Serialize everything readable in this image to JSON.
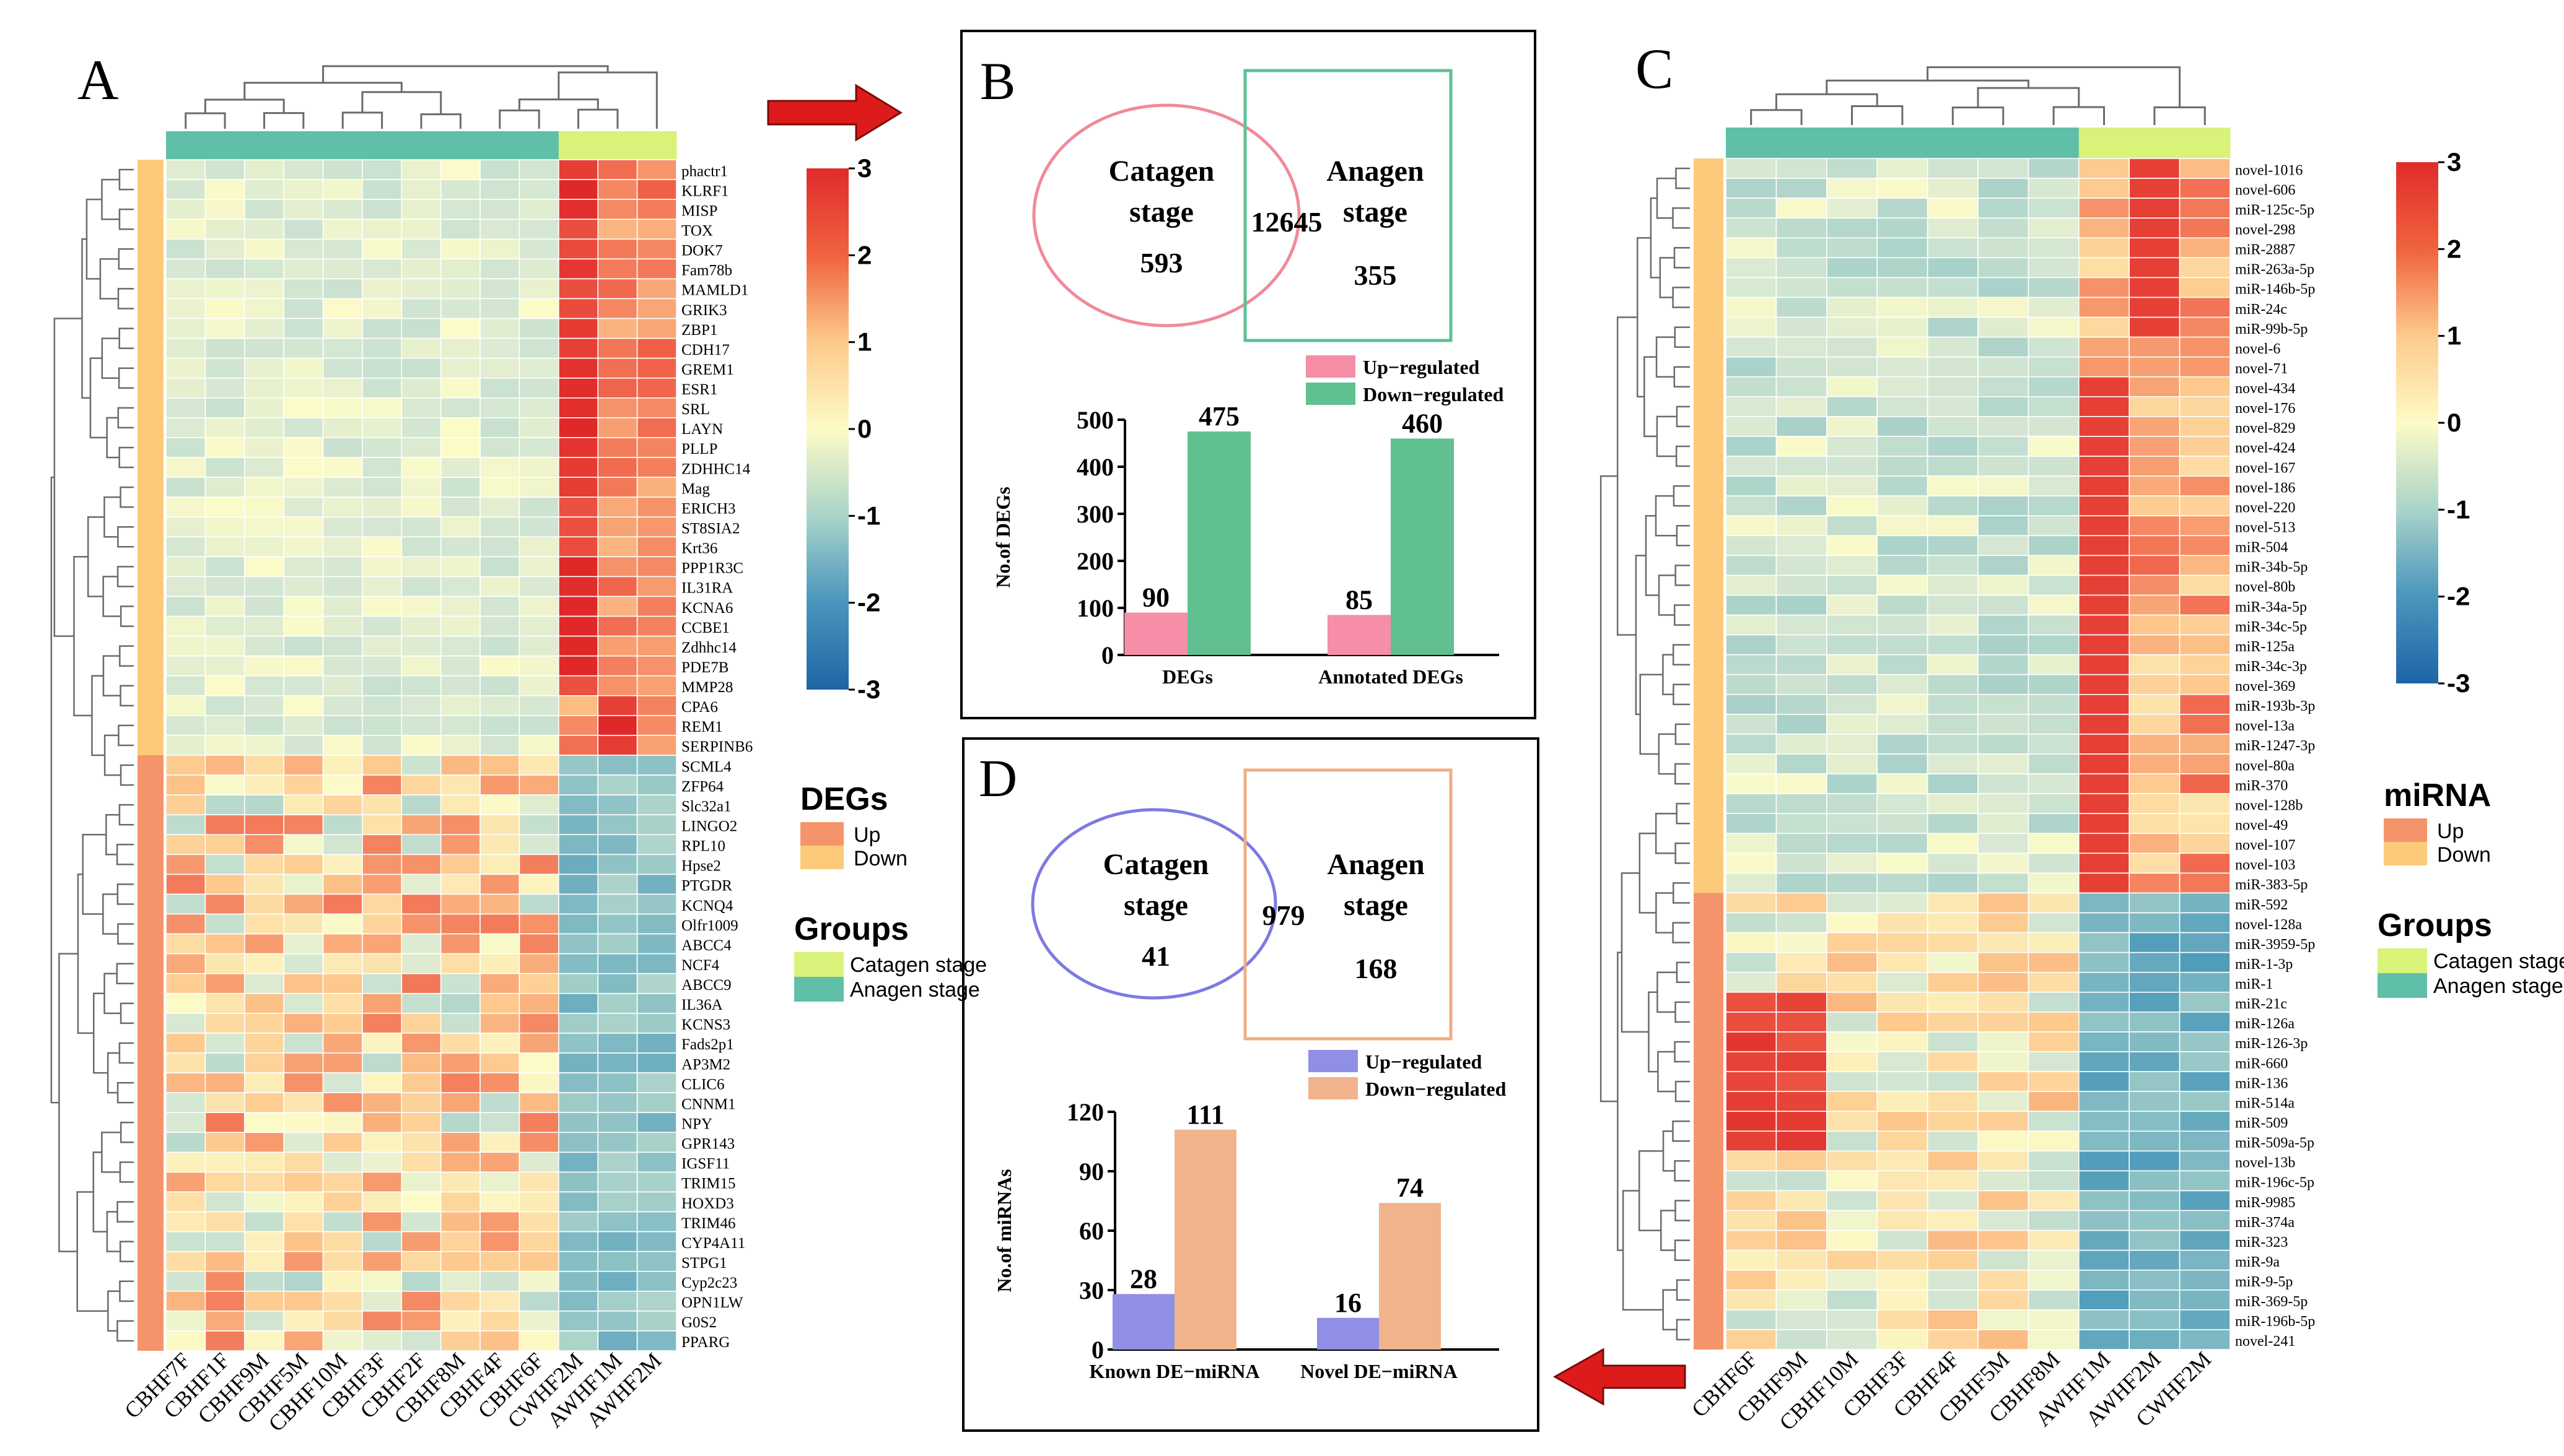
{
  "panels": {
    "a": "A",
    "b": "B",
    "c": "C",
    "d": "D"
  },
  "colors": {
    "anagen": "#5fbfa9",
    "catagen": "#d9f27a",
    "up_sidebar": "#f5946a",
    "down_sidebar": "#fcca7a",
    "scale_hi": "#e02b2b",
    "scale_mid": "#fdfbc6",
    "scale_lo": "#1d65a6",
    "venn_red": "#f08a99",
    "venn_green": "#5dc193",
    "venn_blue": "#7d7ae0",
    "venn_orange": "#f0ad84",
    "bar_pink": "#f58ea6",
    "bar_green": "#61c08f",
    "bar_blue": "#8f8fe6",
    "bar_orange": "#f0b38c",
    "arrow": "#dd1b1b"
  },
  "colorbar_ticks": [
    "3",
    "2",
    "1",
    "0",
    "-1",
    "-2",
    "-3"
  ],
  "chart_data": [
    {
      "type": "heatmap",
      "panel": "A",
      "title": "",
      "columns": [
        "CBHF7F",
        "CBHF1F",
        "CBHF9M",
        "CBHF5M",
        "CBHF10M",
        "CBHF3F",
        "CBHF2F",
        "CBHF8M",
        "CBHF4F",
        "CBHF6F",
        "CWHF2M",
        "AWHF1M",
        "AWHF2M"
      ],
      "column_groups": [
        "Anagen stage",
        "Anagen stage",
        "Anagen stage",
        "Anagen stage",
        "Anagen stage",
        "Anagen stage",
        "Anagen stage",
        "Anagen stage",
        "Anagen stage",
        "Anagen stage",
        "Catagen stage",
        "Catagen stage",
        "Catagen stage"
      ],
      "rows": [
        "phactr1",
        "KLRF1",
        "MISP",
        "TOX",
        "DOK7",
        "Fam78b",
        "MAMLD1",
        "GRIK3",
        "ZBP1",
        "CDH17",
        "GREM1",
        "ESR1",
        "SRL",
        "LAYN",
        "PLLP",
        "ZDHHC14",
        "Mag",
        "ERICH3",
        "ST8SIA2",
        "Krt36",
        "PPP1R3C",
        "IL31RA",
        "KCNA6",
        "CCBE1",
        "Zdhhc14",
        "PDE7B",
        "MMP28",
        "CPA6",
        "REM1",
        "SERPINB6",
        "SCML4",
        "ZFP64",
        "Slc32a1",
        "LINGO2",
        "RPL10",
        "Hpse2",
        "PTGDR",
        "KCNQ4",
        "Olfr1009",
        "ABCC4",
        "NCF4",
        "ABCC9",
        "IL36A",
        "KCNS3",
        "Fads2p1",
        "AP3M2",
        "CLIC6",
        "CNNM1",
        "NPY",
        "GPR143",
        "IGSF11",
        "TRIM15",
        "HOXD3",
        "TRIM46",
        "CYP4A11",
        "STPG1",
        "Cyp2c23",
        "OPN1LW",
        "G0S2",
        "PPARG"
      ],
      "row_groups_up_count": 30,
      "legend": {
        "title": "DEGs",
        "items": [
          "Up",
          "Down"
        ]
      },
      "groups_legend": {
        "title": "Groups",
        "items": [
          "Catagen stage",
          "Anagen stage"
        ]
      },
      "color_range": [
        -3,
        3
      ]
    },
    {
      "type": "bar",
      "panel": "B",
      "venn": {
        "left": "Catagen",
        "left2": "stage",
        "right": "Anagen",
        "right2": "stage",
        "left_only": "593",
        "both": "12645",
        "right_only": "355"
      },
      "legend": [
        "Up−regulated",
        "Down−regulated"
      ],
      "ylabel": "No.of DEGs",
      "ylim": [
        0,
        500
      ],
      "yticks": [
        "0",
        "100",
        "200",
        "300",
        "400",
        "500"
      ],
      "categories": [
        "DEGs",
        "Annotated DEGs"
      ],
      "series": [
        {
          "name": "Up−regulated",
          "values": [
            90,
            85
          ]
        },
        {
          "name": "Down−regulated",
          "values": [
            475,
            460
          ]
        }
      ]
    },
    {
      "type": "heatmap",
      "panel": "C",
      "title": "",
      "columns": [
        "CBHF6F",
        "CBHF9M",
        "CBHF10M",
        "CBHF3F",
        "CBHF4F",
        "CBHF5M",
        "CBHF8M",
        "AWHF1M",
        "AWHF2M",
        "CWHF2M"
      ],
      "column_groups": [
        "Anagen stage",
        "Anagen stage",
        "Anagen stage",
        "Anagen stage",
        "Anagen stage",
        "Anagen stage",
        "Anagen stage",
        "Catagen stage",
        "Catagen stage",
        "Catagen stage"
      ],
      "rows": [
        "novel-1016",
        "novel-606",
        "miR-125c-5p",
        "novel-298",
        "miR-2887",
        "miR-263a-5p",
        "miR-146b-5p",
        "miR-24c",
        "miR-99b-5p",
        "novel-6",
        "novel-71",
        "novel-434",
        "novel-176",
        "novel-829",
        "novel-424",
        "novel-167",
        "novel-186",
        "novel-220",
        "novel-513",
        "miR-504",
        "miR-34b-5p",
        "novel-80b",
        "miR-34a-5p",
        "miR-34c-5p",
        "miR-125a",
        "miR-34c-3p",
        "novel-369",
        "miR-193b-3p",
        "novel-13a",
        "miR-1247-3p",
        "novel-80a",
        "miR-370",
        "novel-128b",
        "novel-49",
        "novel-107",
        "novel-103",
        "miR-383-5p",
        "miR-592",
        "novel-128a",
        "miR-3959-5p",
        "miR-1-3p",
        "miR-1",
        "miR-21c",
        "miR-126a",
        "miR-126-3p",
        "miR-660",
        "miR-136",
        "miR-514a",
        "miR-509",
        "miR-509a-5p",
        "novel-13b",
        "miR-196c-5p",
        "miR-9985",
        "miR-374a",
        "miR-323",
        "miR-9a",
        "miR-9-5p",
        "miR-369-5p",
        "miR-196b-5p",
        "novel-241"
      ],
      "row_groups_up_count": 37,
      "legend": {
        "title": "miRNA",
        "items": [
          "Up",
          "Down"
        ]
      },
      "groups_legend": {
        "title": "Groups",
        "items": [
          "Catagen stage",
          "Anagen stage"
        ]
      },
      "color_range": [
        -3,
        3
      ]
    },
    {
      "type": "bar",
      "panel": "D",
      "venn": {
        "left": "Catagen",
        "left2": "stage",
        "right": "Anagen",
        "right2": "stage",
        "left_only": "41",
        "both": "979",
        "right_only": "168"
      },
      "legend": [
        "Up−regulated",
        "Down−regulated"
      ],
      "ylabel": "No.of miRNAs",
      "ylim": [
        0,
        120
      ],
      "yticks": [
        "0",
        "30",
        "60",
        "90",
        "120"
      ],
      "categories": [
        "Known DE−miRNA",
        "Novel DE−miRNA"
      ],
      "series": [
        {
          "name": "Up−regulated",
          "values": [
            28,
            16
          ]
        },
        {
          "name": "Down−regulated",
          "values": [
            111,
            74
          ]
        }
      ]
    }
  ]
}
